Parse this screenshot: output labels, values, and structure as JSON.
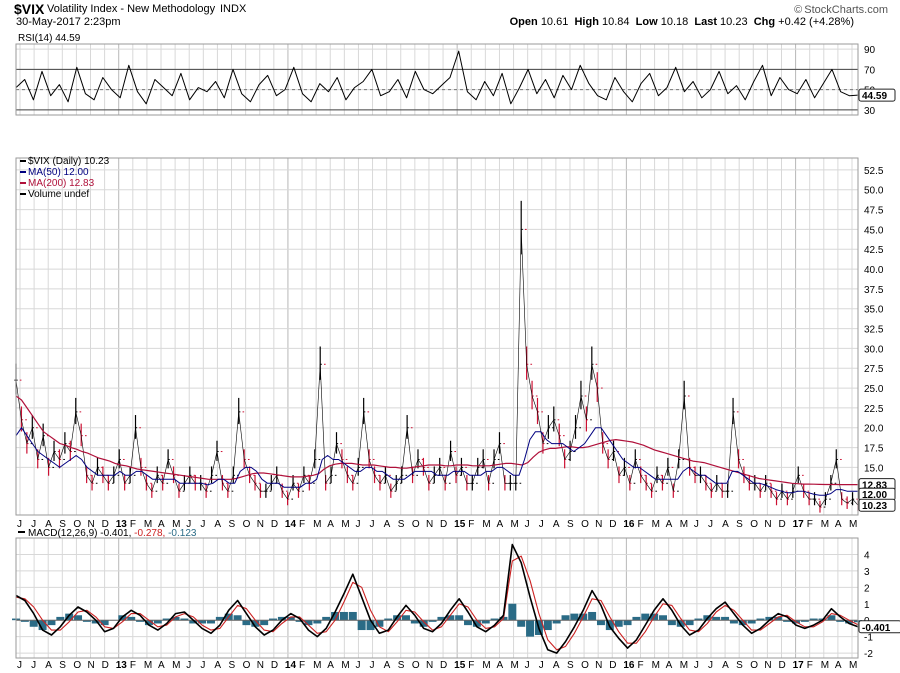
{
  "header": {
    "symbol": "$VIX",
    "description": "Volatility Index - New Methodology",
    "exchange": "INDX",
    "date": "30-May-2017 2:23pm",
    "open_label": "Open",
    "open": "10.61",
    "high_label": "High",
    "high": "10.84",
    "low_label": "Low",
    "low": "10.18",
    "last_label": "Last",
    "last": "10.23",
    "chg_label": "Chg",
    "chg": "+0.42 (+4.28%)",
    "brand": "StockCharts.com",
    "brand_icon": "copyright-icon"
  },
  "colors": {
    "price": "#000000",
    "price_down": "#cc1133",
    "ma50": "#000080",
    "ma200": "#b0103a",
    "rsi": "#000000",
    "macd": "#000000",
    "signal": "#cc2222",
    "histogram": "#2a6b86",
    "grid": "#d8d8d8"
  },
  "chart_data": [
    {
      "panel": "rsi",
      "type": "line",
      "title": "RSI(14) 44.59",
      "ylim": [
        25,
        95
      ],
      "yticks": [
        "90",
        "70",
        "50",
        "30"
      ],
      "reference_lines": [
        70,
        30
      ],
      "last_value_label": "44.59",
      "series": [
        {
          "name": "RSI(14)",
          "values": [
            52,
            60,
            40,
            68,
            44,
            55,
            38,
            72,
            46,
            40,
            62,
            50,
            42,
            74,
            48,
            36,
            60,
            52,
            44,
            66,
            40,
            52,
            48,
            58,
            42,
            70,
            46,
            38,
            55,
            64,
            44,
            50,
            72,
            46,
            38,
            56,
            48,
            62,
            40,
            52,
            58,
            70,
            44,
            48,
            60,
            42,
            68,
            50,
            46,
            54,
            62,
            88,
            48,
            40,
            58,
            44,
            66,
            36,
            52,
            70,
            46,
            60,
            42,
            64,
            50,
            74,
            56,
            44,
            40,
            62,
            48,
            38,
            56,
            66,
            44,
            52,
            72,
            48,
            58,
            42,
            50,
            68,
            46,
            54,
            40,
            58,
            74,
            44,
            62,
            50,
            46,
            60,
            42,
            56,
            70,
            48,
            44,
            44.59
          ]
        }
      ]
    },
    {
      "panel": "price",
      "type": "line",
      "title": "$VIX (Daily) 10.23",
      "ylim": [
        9,
        54
      ],
      "yticks": [
        "52.5",
        "50.0",
        "47.5",
        "45.0",
        "42.5",
        "40.0",
        "37.5",
        "35.0",
        "32.5",
        "30.0",
        "27.5",
        "25.0",
        "22.5",
        "20.0",
        "17.5",
        "15.0",
        "12.83",
        "12.00",
        "10.23"
      ],
      "x_labels": [
        "J",
        "J",
        "A",
        "S",
        "O",
        "N",
        "D",
        "13",
        "F",
        "M",
        "A",
        "M",
        "J",
        "J",
        "A",
        "S",
        "O",
        "N",
        "D",
        "14",
        "F",
        "M",
        "A",
        "M",
        "J",
        "J",
        "A",
        "S",
        "O",
        "N",
        "D",
        "15",
        "F",
        "M",
        "A",
        "M",
        "J",
        "J",
        "A",
        "S",
        "O",
        "N",
        "D",
        "16",
        "F",
        "M",
        "A",
        "M",
        "J",
        "J",
        "A",
        "S",
        "O",
        "N",
        "D",
        "17",
        "F",
        "M",
        "A",
        "M"
      ],
      "legend": [
        {
          "name": "$VIX (Daily) 10.23"
        },
        {
          "name": "MA(50) 12.00"
        },
        {
          "name": "MA(200) 12.83"
        },
        {
          "name": "Volume undef"
        }
      ],
      "series": [
        {
          "name": "$VIX",
          "values": [
            26,
            21,
            18,
            20,
            16,
            19,
            15,
            17,
            16,
            18,
            17,
            22,
            19,
            14,
            13,
            15,
            14,
            13,
            14,
            16,
            13,
            14,
            20,
            15,
            13,
            12,
            14,
            13,
            16,
            14,
            12,
            13,
            14,
            13,
            13,
            12,
            14,
            17,
            13,
            12,
            14,
            22,
            16,
            14,
            13,
            12,
            12,
            13,
            14,
            12,
            11,
            13,
            12,
            14,
            13,
            16,
            28,
            13,
            14,
            18,
            16,
            14,
            13,
            15,
            22,
            16,
            14,
            13,
            14,
            12,
            13,
            14,
            20,
            14,
            16,
            15,
            13,
            14,
            15,
            13,
            17,
            14,
            15,
            13,
            13,
            15,
            16,
            13,
            16,
            18,
            13,
            13,
            13,
            45,
            28,
            24,
            22,
            18,
            20,
            21,
            19,
            16,
            17,
            20,
            24,
            21,
            28,
            25,
            18,
            16,
            17,
            14,
            15,
            13,
            16,
            14,
            13,
            12,
            14,
            13,
            15,
            12,
            16,
            24,
            15,
            14,
            14,
            13,
            12,
            13,
            12,
            12,
            22,
            16,
            14,
            13,
            13,
            12,
            13,
            12,
            11,
            12,
            11,
            12,
            14,
            12,
            11,
            11,
            10,
            11,
            13,
            16,
            11,
            10.5,
            11,
            10.23
          ]
        },
        {
          "name": "MA(50)",
          "values": [
            19,
            20,
            19,
            18,
            17,
            16.5,
            16,
            15.5,
            15,
            15.5,
            16,
            16.5,
            16,
            15,
            14.5,
            14,
            14,
            14,
            14,
            14.5,
            14,
            14,
            14.5,
            14.5,
            14,
            13.5,
            13.5,
            13.5,
            13.5,
            13.5,
            13,
            13,
            13,
            13,
            13,
            12.8,
            13,
            13.5,
            13.5,
            13,
            13,
            14.5,
            15,
            15,
            14.5,
            13.5,
            13,
            13,
            13,
            12.5,
            12.5,
            12.5,
            12.5,
            13,
            13,
            13.5,
            16,
            16.5,
            16,
            16,
            15.5,
            15,
            14.5,
            14.5,
            15,
            15,
            14.5,
            14.5,
            14,
            13.5,
            13.5,
            13.5,
            14,
            14.5,
            14.5,
            14.5,
            14.5,
            14,
            14,
            14,
            14.5,
            14.5,
            14.5,
            14,
            14,
            14,
            14.5,
            14.5,
            15,
            15,
            14.5,
            14,
            14,
            16,
            18.5,
            19.5,
            19.5,
            18.5,
            18,
            18,
            18,
            17.5,
            17,
            17.5,
            18,
            19,
            20,
            20,
            19,
            18,
            17,
            16,
            15.5,
            15,
            15,
            14.5,
            14,
            13.5,
            13.5,
            13.5,
            13.5,
            13.5,
            14.5,
            15,
            14.5,
            14,
            14,
            13.5,
            13,
            13,
            13,
            14.5,
            14.5,
            14,
            13.5,
            13,
            13,
            12.8,
            12.5,
            12.2,
            12,
            11.8,
            11.8,
            12,
            12,
            11.8,
            11.6,
            11.5,
            11.5,
            11.7,
            12.2,
            12.2,
            12,
            12,
            12
          ]
        },
        {
          "name": "MA(200)",
          "values": [
            24,
            23.5,
            22.5,
            21.5,
            20.5,
            19.5,
            19,
            18.5,
            18,
            17.8,
            17.5,
            17.3,
            17,
            16.8,
            16.5,
            16.2,
            16,
            15.8,
            15.5,
            15.3,
            15.2,
            15,
            14.8,
            14.7,
            14.6,
            14.5,
            14.4,
            14.3,
            14.2,
            14.1,
            14,
            13.9,
            13.8,
            13.7,
            13.6,
            13.5,
            13.5,
            13.5,
            13.5,
            13.5,
            13.6,
            13.8,
            14,
            14.2,
            14.3,
            14.3,
            14.2,
            14.1,
            14,
            13.9,
            13.8,
            13.8,
            13.8,
            13.9,
            14,
            14.2,
            14.8,
            15.2,
            15.4,
            15.5,
            15.5,
            15.5,
            15.4,
            15.3,
            15.3,
            15.3,
            15.2,
            15.1,
            15,
            15,
            14.9,
            14.9,
            15,
            15.1,
            15.2,
            15.3,
            15.3,
            15.3,
            15.2,
            15.2,
            15.3,
            15.3,
            15.3,
            15.2,
            15.2,
            15.2,
            15.2,
            15.3,
            15.4,
            15.5,
            15.5,
            15.4,
            15.3,
            15.6,
            16.3,
            16.9,
            17.2,
            17.4,
            17.4,
            17.5,
            17.6,
            17.6,
            17.5,
            17.5,
            17.6,
            17.8,
            18,
            18.2,
            18.4,
            18.5,
            18.4,
            18.3,
            18.2,
            18,
            17.8,
            17.5,
            17.2,
            17,
            16.8,
            16.6,
            16.4,
            16.2,
            16,
            15.8,
            15.7,
            15.6,
            15.4,
            15.2,
            15,
            14.8,
            14.6,
            14.4,
            14.2,
            14,
            13.8,
            13.6,
            13.5,
            13.4,
            13.3,
            13.2,
            13.1,
            13,
            12.95,
            12.9,
            12.9,
            12.88,
            12.86,
            12.85,
            12.84,
            12.84,
            12.83,
            12.83,
            12.83,
            12.83
          ]
        }
      ]
    },
    {
      "panel": "macd",
      "type": "line",
      "title": "MACD(12,26,9) -0.401, -0.278, -0.123",
      "ylim": [
        -2.3,
        5
      ],
      "yticks": [
        "4",
        "3",
        "2",
        "1",
        "0",
        "-0.401",
        "-1",
        "-2"
      ],
      "x_labels": [
        "J",
        "J",
        "A",
        "S",
        "O",
        "N",
        "D",
        "13",
        "F",
        "M",
        "A",
        "M",
        "J",
        "J",
        "A",
        "S",
        "O",
        "N",
        "D",
        "14",
        "F",
        "M",
        "A",
        "M",
        "J",
        "J",
        "A",
        "S",
        "O",
        "N",
        "D",
        "15",
        "F",
        "M",
        "A",
        "M",
        "J",
        "J",
        "A",
        "S",
        "O",
        "N",
        "D",
        "16",
        "F",
        "M",
        "A",
        "M",
        "J",
        "J",
        "A",
        "S",
        "O",
        "N",
        "D",
        "17",
        "F",
        "M",
        "A",
        "M"
      ],
      "series": [
        {
          "name": "MACD",
          "values": [
            1.5,
            1.2,
            0.4,
            -0.6,
            -0.9,
            -0.4,
            0.3,
            0.8,
            0.5,
            0,
            -0.7,
            -0.5,
            0.2,
            0.6,
            0.3,
            -0.3,
            -0.6,
            -0.2,
            0.4,
            0.5,
            0,
            -0.5,
            -0.8,
            -0.3,
            0.6,
            1.2,
            0.4,
            -0.4,
            -0.9,
            -0.6,
            0,
            0.4,
            0.1,
            -0.6,
            -1,
            -0.5,
            0.5,
            1.6,
            2.8,
            1.4,
            0,
            -0.8,
            -0.6,
            0.2,
            0.9,
            0.3,
            -0.5,
            -0.7,
            -0.2,
            0.6,
            1.3,
            0.5,
            -0.4,
            -0.7,
            -0.3,
            0.3,
            4.6,
            3.5,
            1.4,
            -0.5,
            -1.8,
            -2,
            -1.3,
            -0.4,
            0.6,
            1.8,
            0.9,
            -0.4,
            -1.1,
            -1.7,
            -1.2,
            -0.3,
            0.6,
            1.3,
            0.6,
            -0.3,
            -0.9,
            -0.6,
            0.1,
            0.7,
            1.1,
            0.4,
            -0.3,
            -0.8,
            -0.5,
            0,
            0.4,
            0.2,
            -0.3,
            -0.5,
            -0.3,
            0,
            0.7,
            0.2,
            -0.2,
            -0.401
          ]
        },
        {
          "name": "Signal",
          "values": [
            1.4,
            1.3,
            0.8,
            0,
            -0.6,
            -0.6,
            -0.1,
            0.5,
            0.6,
            0.2,
            -0.4,
            -0.5,
            -0.1,
            0.4,
            0.4,
            0,
            -0.4,
            -0.3,
            0.2,
            0.4,
            0.2,
            -0.3,
            -0.6,
            -0.5,
            0.2,
            0.9,
            0.7,
            0,
            -0.6,
            -0.7,
            -0.2,
            0.2,
            0.2,
            -0.3,
            -0.8,
            -0.7,
            0,
            1.1,
            2.3,
            2,
            0.6,
            -0.4,
            -0.7,
            -0.1,
            0.6,
            0.5,
            -0.1,
            -0.6,
            -0.4,
            0.3,
            1,
            0.8,
            0,
            -0.5,
            -0.4,
            0.1,
            3.6,
            3.9,
            2.4,
            0.4,
            -1.2,
            -1.8,
            -1.6,
            -0.8,
            0.2,
            1.3,
            1.2,
            0.2,
            -0.7,
            -1.4,
            -1.4,
            -0.7,
            0.2,
            1,
            0.9,
            0.1,
            -0.6,
            -0.7,
            -0.2,
            0.5,
            0.9,
            0.6,
            0,
            -0.6,
            -0.6,
            -0.2,
            0.2,
            0.3,
            -0.1,
            -0.4,
            -0.4,
            -0.1,
            0.4,
            0.3,
            0,
            -0.278
          ]
        }
      ]
    }
  ]
}
